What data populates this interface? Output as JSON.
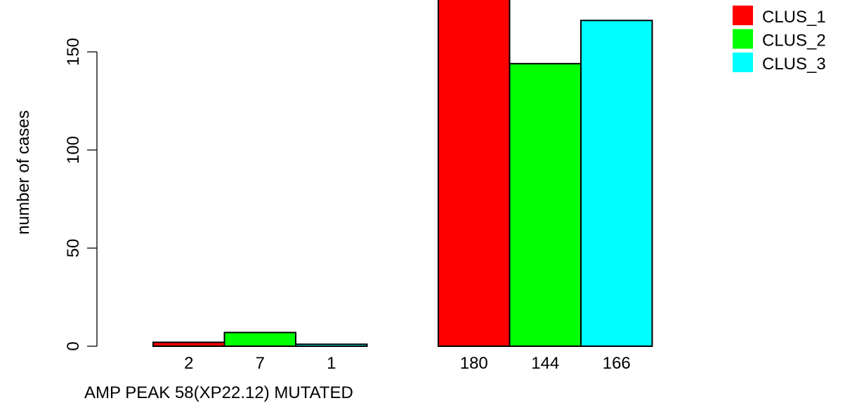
{
  "chart_data": {
    "type": "bar",
    "groups": [
      "",
      ""
    ],
    "series": [
      {
        "name": "CLUS_1",
        "color": "#ff0000",
        "values": [
          2,
          180
        ]
      },
      {
        "name": "CLUS_2",
        "color": "#00ff00",
        "values": [
          7,
          144
        ]
      },
      {
        "name": "CLUS_3",
        "color": "#00ffff",
        "values": [
          1,
          166
        ]
      }
    ],
    "bar_labels": [
      [
        "2",
        "7",
        "1"
      ],
      [
        "180",
        "144",
        "166"
      ]
    ],
    "title": "",
    "xlabel": "AMP PEAK 58(XP22.12) MUTATED",
    "ylabel": "number of cases",
    "ylim": [
      0,
      180
    ],
    "yticks": [
      0,
      50,
      100,
      150
    ],
    "ytick_labels": [
      "0",
      "50",
      "100",
      "150"
    ],
    "legend_position": "top-right",
    "grid": false
  }
}
